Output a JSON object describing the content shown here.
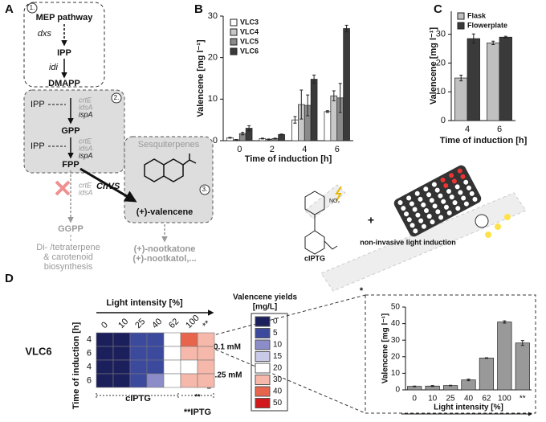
{
  "diagram": {
    "panel": "A",
    "module_1": "1.",
    "mep": "MEP pathway",
    "dxs": "dxs",
    "ipp": "IPP",
    "idi": "idi",
    "dmapp": "DMAPP",
    "module_2": "2.",
    "ipp_2a": "IPP",
    "ipp_2b": "IPP",
    "gpp": "GPP",
    "fpp": "FPP",
    "enzymes_1": [
      "crtE",
      "idsA",
      "ispA"
    ],
    "enzymes_2": [
      "crtE",
      "idsA",
      "ispA"
    ],
    "cnvs": "CnVS",
    "sesquiterpenes": "Sesquiterpenes",
    "module_3": "3.",
    "valencene": "(+)-valencene",
    "blocked_enzymes": [
      "crtE",
      "idsA"
    ],
    "ggpp": "GGPP",
    "downstream": [
      "Di- /tetraterpene",
      "& carotenoid",
      "biosynthesis"
    ],
    "products": [
      "(+)-nootkatone",
      "(+)-nootkatol,..."
    ]
  },
  "chart_data": [
    {
      "type": "bar",
      "panel": "B",
      "xlabel": "Time of induction [h]",
      "ylabel": "Valencene [mg l⁻¹]",
      "categories": [
        "0",
        "2",
        "4",
        "6"
      ],
      "series": [
        {
          "name": "VLC3",
          "color": "#ffffff",
          "values": [
            0.7,
            0.5,
            5,
            7
          ],
          "errors": [
            0.1,
            0.1,
            0.8,
            0.2
          ]
        },
        {
          "name": "VLC4",
          "color": "#c8c8c8",
          "values": [
            0.2,
            0.3,
            8.7,
            10.8
          ],
          "errors": [
            0.1,
            0.1,
            3.5,
            1.2
          ]
        },
        {
          "name": "VLC5",
          "color": "#8a8a8a",
          "values": [
            1.7,
            0.5,
            8.5,
            10.3
          ],
          "errors": [
            0.3,
            0.1,
            2.5,
            3.5
          ]
        },
        {
          "name": "VLC6",
          "color": "#3a3a3a",
          "values": [
            3,
            1.5,
            14.8,
            27
          ],
          "errors": [
            0.6,
            0.1,
            1,
            0.8
          ]
        }
      ],
      "ylim": [
        0,
        30
      ],
      "yticks": [
        0,
        10,
        20,
        30
      ]
    },
    {
      "type": "bar",
      "panel": "C",
      "xlabel": "Time of induction [h]",
      "ylabel": "Valencene [mg l⁻¹]",
      "categories": [
        "4",
        "6"
      ],
      "series": [
        {
          "name": "Flask",
          "color": "#c0c0c0",
          "values": [
            14.8,
            27
          ],
          "errors": [
            1,
            0.6
          ]
        },
        {
          "name": "Flowerplate",
          "color": "#3a3a3a",
          "values": [
            28.5,
            29
          ],
          "errors": [
            1.6,
            0.3
          ]
        }
      ],
      "ylim": [
        0,
        38
      ],
      "yticks": [
        0,
        10,
        20,
        30
      ]
    },
    {
      "type": "bar",
      "xlabel": "Light intensity [%]",
      "ylabel": "Valencene [mg l⁻¹]",
      "categories": [
        "0",
        "10",
        "25",
        "40",
        "62",
        "100",
        "**"
      ],
      "values": [
        2.1,
        2.3,
        2.6,
        6,
        19.2,
        41,
        28.3
      ],
      "errors": [
        0.2,
        0.3,
        0.2,
        0.5,
        0.2,
        0.7,
        1.5
      ],
      "color": "#999999",
      "ylim": [
        0,
        50
      ],
      "yticks": [
        0,
        10,
        20,
        30,
        40,
        50
      ]
    }
  ],
  "induction": {
    "compound": "cIPTG",
    "nitro": "NO₂",
    "plus": "+",
    "method": "non-invasive light induction"
  },
  "heatmap": {
    "panel": "D",
    "strain": "VLC6",
    "title": "Light intensity [%]",
    "columns": [
      "0",
      "10",
      "25",
      "40",
      "62",
      "100",
      "**"
    ],
    "row_axis_label": "Time of induction [h]",
    "rows": [
      "4",
      "6",
      "4",
      "6"
    ],
    "values": [
      [
        2.1,
        2.3,
        2.6,
        6,
        19.2,
        41,
        28.3
      ],
      [
        2,
        2,
        3,
        7,
        22,
        33,
        30
      ],
      [
        2,
        2,
        3,
        7,
        21,
        23,
        31
      ],
      [
        2,
        2,
        3,
        8,
        22,
        31,
        32
      ]
    ],
    "marker": "*",
    "groups": [
      "0.1 mM",
      "0.25 mM"
    ],
    "inducers": [
      "cIPTG",
      "**",
      "**IPTG"
    ],
    "scale": {
      "title": [
        "Valencene yields",
        "[mg/L]"
      ],
      "levels": [
        0,
        5,
        10,
        15,
        20,
        30,
        40,
        50
      ],
      "colors": [
        "#1b1f5c",
        "#3c4a9e",
        "#8c8cc8",
        "#c9c9e8",
        "#ffffff",
        "#f5b8aa",
        "#e8654d",
        "#d1191c"
      ]
    }
  }
}
